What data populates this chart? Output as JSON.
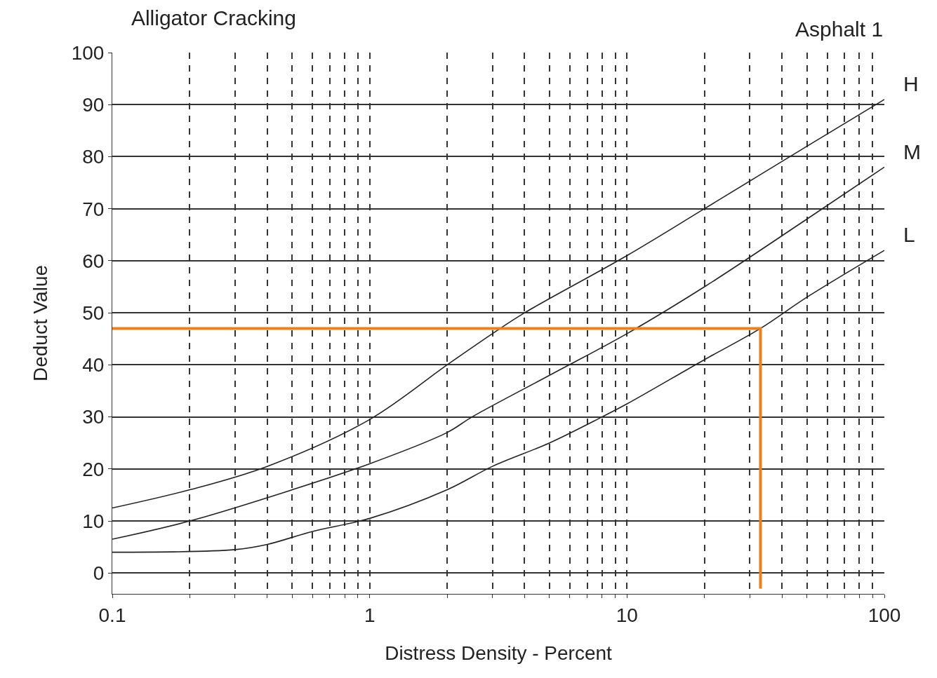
{
  "chart_data": {
    "type": "line",
    "title": "Alligator Cracking",
    "subtitle": "Asphalt 1",
    "xlabel": "Distress Density - Percent",
    "ylabel": "Deduct Value",
    "log": "x",
    "grid": true,
    "legend": false,
    "marker": "none",
    "line_style": "solid",
    "xlim": [
      0.1,
      100
    ],
    "ylim": [
      -4,
      100
    ],
    "xticks": [
      0.1,
      {
        "value": 0.2,
        "label": null
      },
      {
        "value": 0.3,
        "label": null
      },
      {
        "value": 0.4,
        "label": null
      },
      {
        "value": 0.5,
        "label": null
      },
      {
        "value": 0.6,
        "label": null
      },
      {
        "value": 0.7,
        "label": null
      },
      {
        "value": 0.8,
        "label": null
      },
      {
        "value": 0.9,
        "label": null
      },
      1,
      {
        "value": 2,
        "label": null
      },
      {
        "value": 3,
        "label": null
      },
      {
        "value": 4,
        "label": null
      },
      {
        "value": 5,
        "label": null
      },
      {
        "value": 6,
        "label": null
      },
      {
        "value": 7,
        "label": null
      },
      {
        "value": 8,
        "label": null
      },
      {
        "value": 9,
        "label": null
      },
      10,
      {
        "value": 20,
        "label": null
      },
      {
        "value": 30,
        "label": null
      },
      {
        "value": 40,
        "label": null
      },
      {
        "value": 50,
        "label": null
      },
      {
        "value": 60,
        "label": null
      },
      {
        "value": 70,
        "label": null
      },
      {
        "value": 80,
        "label": null
      },
      {
        "value": 90,
        "label": null
      },
      100
    ],
    "yticks": [
      0,
      10,
      20,
      30,
      40,
      50,
      60,
      70,
      80,
      90,
      100
    ],
    "series": [
      {
        "name": "H",
        "color": "#222222",
        "x": [
          0.1,
          0.2,
          0.4,
          1,
          2,
          3,
          4,
          10,
          20,
          50,
          100
        ],
        "values": [
          12.5,
          16,
          20.5,
          29.5,
          40,
          46,
          50,
          61,
          70,
          82,
          91
        ]
      },
      {
        "name": "M",
        "color": "#222222",
        "x": [
          0.1,
          0.2,
          0.5,
          1,
          2,
          2.5,
          5,
          10,
          20,
          50,
          100
        ],
        "values": [
          6.5,
          10,
          16,
          21,
          27,
          30,
          38,
          46,
          55,
          68,
          78
        ]
      },
      {
        "name": "L",
        "color": "#222222",
        "x": [
          0.1,
          0.3,
          0.4,
          0.6,
          1,
          2,
          3,
          5,
          8,
          10,
          20,
          33,
          50,
          100
        ],
        "values": [
          4,
          4.5,
          5.5,
          8,
          10.5,
          16,
          20.5,
          25,
          30,
          32.5,
          41,
          47,
          53,
          62
        ]
      },
      {
        "color": "#ee7f1a",
        "x": [
          0.1,
          33,
          33
        ],
        "values": [
          47,
          47,
          -3
        ]
      }
    ]
  }
}
